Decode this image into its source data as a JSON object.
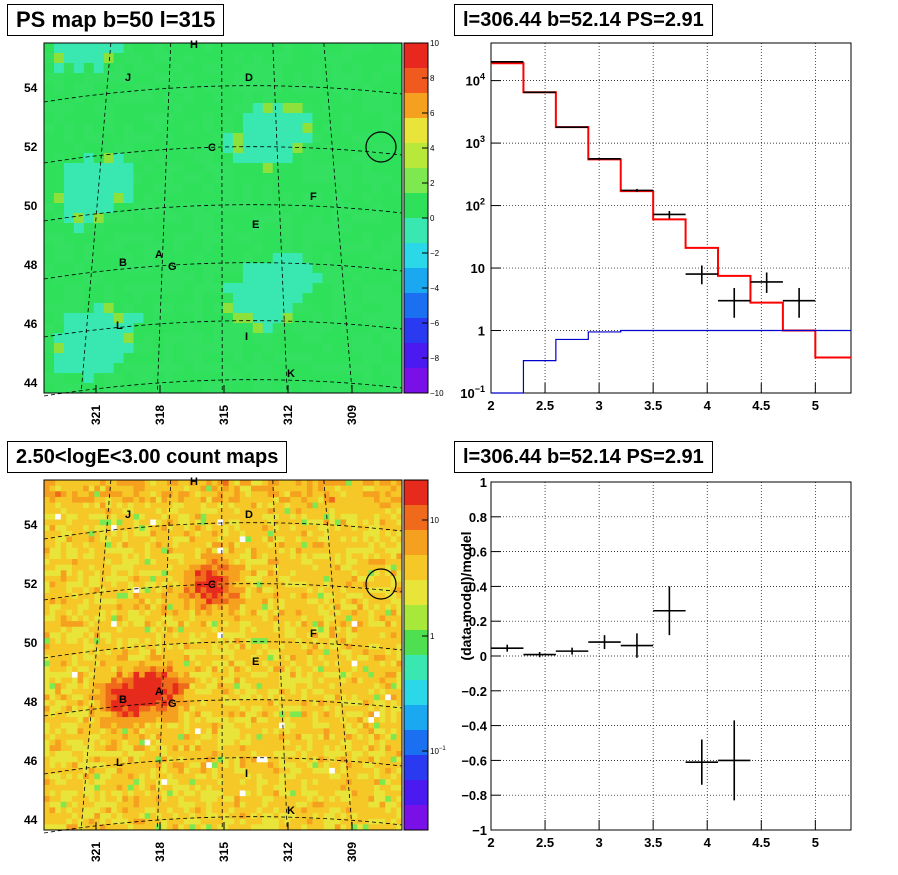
{
  "panels": {
    "ps_map_title": "PS map b=50 l=315",
    "spectrum_title": "l=306.44 b=52.14 PS=2.91",
    "count_map_title": "2.50<logE<3.00 count maps",
    "residual_title": "l=306.44 b=52.14 PS=2.91"
  },
  "chart_data": [
    {
      "type": "heatmap",
      "id": "ps-map",
      "title": "PS map b=50 l=315",
      "x_ticks": [
        "321",
        "318",
        "315",
        "312",
        "309"
      ],
      "y_ticks": [
        "54",
        "52",
        "50",
        "48",
        "46",
        "44"
      ],
      "colorbar": {
        "min": -10,
        "max": 10,
        "ticks": [
          "10",
          "8",
          "6",
          "4",
          "2",
          "0",
          "-2",
          "-4",
          "-6",
          "-8",
          "−10"
        ]
      },
      "sources": [
        "H",
        "J",
        "D",
        "C",
        "F",
        "E",
        "B",
        "A",
        "G",
        "L",
        "I",
        "K"
      ],
      "colors": {
        "base": "#2ee05a",
        "cool": "#38e8b0",
        "warm": "#8ee03a"
      }
    },
    {
      "type": "line",
      "id": "spectrum",
      "title": "l=306.44 b=52.14 PS=2.91",
      "yscale": "log",
      "xlim": [
        2,
        5.33
      ],
      "ylim": [
        0.1,
        40000
      ],
      "x_ticks": [
        "2",
        "2.5",
        "3",
        "3.5",
        "4",
        "4.5",
        "5"
      ],
      "y_ticks": [
        "10^-1",
        "1",
        "10",
        "10^2",
        "10^3",
        "10^4"
      ],
      "grid": true,
      "series": [
        {
          "style": "step",
          "color": "#ff0000",
          "edges": [
            2.0,
            2.3,
            2.6,
            2.9,
            3.2,
            3.5,
            3.8,
            4.1,
            4.4,
            4.7,
            5.0,
            5.33
          ],
          "values": [
            19000,
            6500,
            1800,
            550,
            170,
            60,
            21,
            7.5,
            2.8,
            1.0,
            0.37
          ]
        },
        {
          "style": "step",
          "color": "#0000cc",
          "edges": [
            2.0,
            2.3,
            2.6,
            2.9,
            3.2,
            5.33
          ],
          "values": [
            0.02,
            0.33,
            0.72,
            0.95,
            1.0
          ]
        },
        {
          "style": "errorbar",
          "color": "#000000",
          "x": [
            2.15,
            2.45,
            2.75,
            3.05,
            3.35,
            3.65,
            3.95,
            4.25,
            4.55,
            4.85
          ],
          "xerr": 0.15,
          "y": [
            20000,
            6500,
            1800,
            560,
            175,
            72,
            8,
            3,
            6,
            3
          ],
          "ylo": [
            19600,
            6400,
            1780,
            545,
            165,
            62,
            5.5,
            1.6,
            4.0,
            1.6
          ],
          "yhi": [
            20400,
            6600,
            1820,
            575,
            185,
            82,
            11,
            4.8,
            8.5,
            4.8
          ]
        }
      ]
    },
    {
      "type": "heatmap",
      "id": "count-map",
      "title": "2.50<logE<3.00 count maps",
      "x_ticks": [
        "321",
        "318",
        "315",
        "312",
        "309"
      ],
      "y_ticks": [
        "54",
        "52",
        "50",
        "48",
        "46",
        "44"
      ],
      "colorbar": {
        "scale": "log",
        "ticks": [
          "10",
          "1",
          "10^-1"
        ]
      },
      "sources": [
        "H",
        "J",
        "D",
        "C",
        "F",
        "E",
        "B",
        "A",
        "G",
        "L",
        "I",
        "K"
      ],
      "colors": {
        "hot": "#e8281e",
        "mid": "#f5a21e",
        "low": "#e8e83a"
      }
    },
    {
      "type": "scatter",
      "id": "residual",
      "title": "l=306.44 b=52.14 PS=2.91",
      "ylabel": "(data-model)/model",
      "xlim": [
        2,
        5.33
      ],
      "ylim": [
        -1,
        1
      ],
      "x_ticks": [
        "2",
        "2.5",
        "3",
        "3.5",
        "4",
        "4.5",
        "5"
      ],
      "y_ticks": [
        "1",
        "0.8",
        "0.6",
        "0.4",
        "0.2",
        "0",
        "−0.2",
        "−0.4",
        "−0.6",
        "−0.8",
        "−1"
      ],
      "grid": true,
      "points": {
        "x": [
          2.15,
          2.45,
          2.75,
          3.05,
          3.35,
          3.65,
          3.95,
          4.25
        ],
        "y": [
          0.045,
          0.008,
          0.028,
          0.08,
          0.06,
          0.26,
          -0.61,
          -0.6
        ],
        "yerr": [
          0.02,
          0.015,
          0.02,
          0.04,
          0.07,
          0.14,
          0.13,
          0.23
        ],
        "xerr": 0.15
      }
    }
  ]
}
